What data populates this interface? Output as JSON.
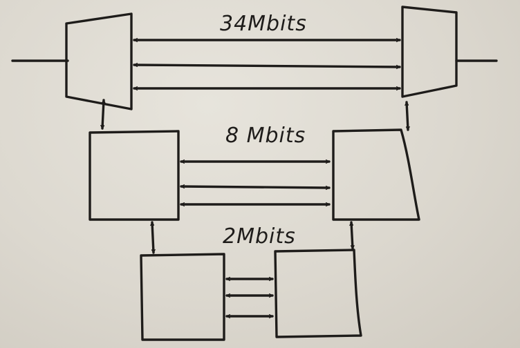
{
  "diagram": {
    "links": [
      {
        "id": "top",
        "label": "34Mbits"
      },
      {
        "id": "middle",
        "label": "8 Mbits"
      },
      {
        "id": "bottom",
        "label": "2Mbits"
      }
    ]
  }
}
